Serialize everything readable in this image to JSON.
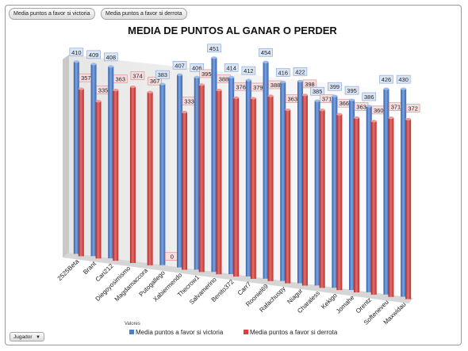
{
  "pivot": {
    "field_buttons": [
      "Media puntos a favor si victoria",
      "Media puntos a favor si derrota"
    ],
    "values_label": "Valores",
    "row_field": "Jugador"
  },
  "colors": {
    "victoria": "#4f7fc8",
    "derrota": "#d9403e",
    "label_box_victoria": "#dbe6f7",
    "label_box_derrota": "#f6dede"
  },
  "chart_data": {
    "type": "bar",
    "title": "MEDIA DE PUNTOS AL GANAR O PERDER",
    "categories": [
      "2525Beta",
      "Brant",
      "Cari212",
      "Diegoyosimismo",
      "Magdamaccora",
      "Putogallego",
      "Xabiermendo",
      "Thecrow1",
      "Salvamerino",
      "Benito372",
      "Carr7",
      "Rooniel69",
      "Rafachuspy",
      "Niagur",
      "Charaless",
      "Kekigo",
      "Jomahe",
      "Orentz",
      "Softeneveu",
      "Maxwidau"
    ],
    "series": [
      {
        "name": "Media puntos a favor si victoria",
        "values": [
          410,
          409,
          408,
          null,
          null,
          383,
          407,
          406,
          451,
          414,
          412,
          454,
          416,
          422,
          385,
          399,
          395,
          386,
          426,
          430
        ]
      },
      {
        "name": "Media puntos a favor si derrota",
        "values": [
          357,
          335,
          363,
          374,
          367,
          0,
          333,
          395,
          388,
          376,
          379,
          388,
          363,
          398,
          371,
          366,
          363,
          360,
          371,
          372
        ]
      }
    ],
    "legend_position": "bottom",
    "grid": false
  }
}
